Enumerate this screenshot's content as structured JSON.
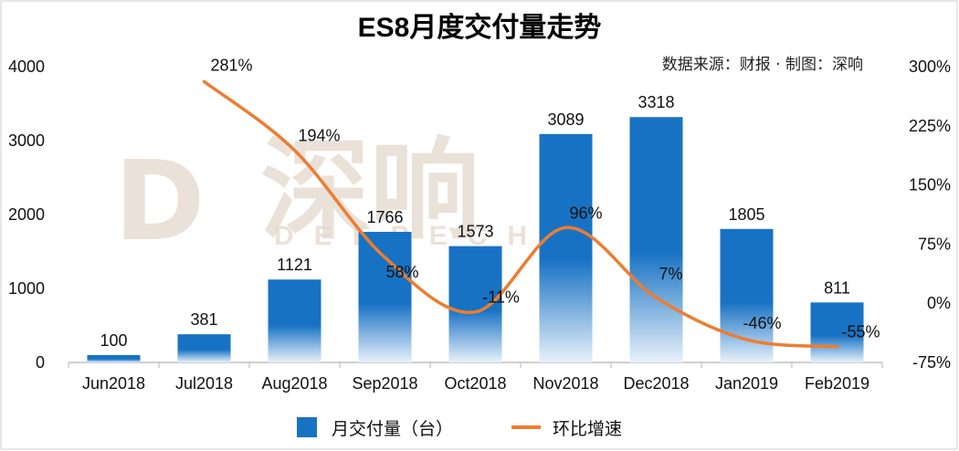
{
  "chart_data": {
    "type": "bar+line",
    "title": "ES8月度交付量走势",
    "source_note": "数据来源：财报 · 制图：深响",
    "watermark": {
      "logo_glyph": "D",
      "cn": "深响",
      "en": "DEEPECHO"
    },
    "categories": [
      "Jun2018",
      "Jul2018",
      "Aug2018",
      "Sep2018",
      "Oct2018",
      "Nov2018",
      "Dec2018",
      "Jan2019",
      "Feb2019"
    ],
    "series": [
      {
        "name": "月交付量（台）",
        "type": "bar",
        "axis": "left",
        "color": "#1872c4",
        "values": [
          100,
          381,
          1121,
          1766,
          1573,
          3089,
          3318,
          1805,
          811
        ],
        "labels": [
          "100",
          "381",
          "1121",
          "1766",
          "1573",
          "3089",
          "3318",
          "1805",
          "811"
        ]
      },
      {
        "name": "环比增速",
        "type": "line",
        "axis": "right",
        "color": "#ed7d31",
        "values": [
          null,
          281,
          194,
          58,
          -11,
          96,
          7,
          -46,
          -55
        ],
        "labels": [
          "",
          "281%",
          "194%",
          "58%",
          "-11%",
          "96%",
          "7%",
          "-46%",
          "-55%"
        ]
      }
    ],
    "y_left": {
      "min": 0,
      "max": 4000,
      "ticks": [
        "0",
        "1000",
        "2000",
        "3000",
        "4000"
      ],
      "tick_values": [
        0,
        1000,
        2000,
        3000,
        4000
      ]
    },
    "y_right": {
      "min": -75,
      "max": 300,
      "ticks": [
        "-75%",
        "0%",
        "75%",
        "150%",
        "225%",
        "300%"
      ],
      "tick_values": [
        -75,
        0,
        75,
        150,
        225,
        300
      ]
    },
    "grid": false,
    "legend_position": "bottom-center"
  }
}
